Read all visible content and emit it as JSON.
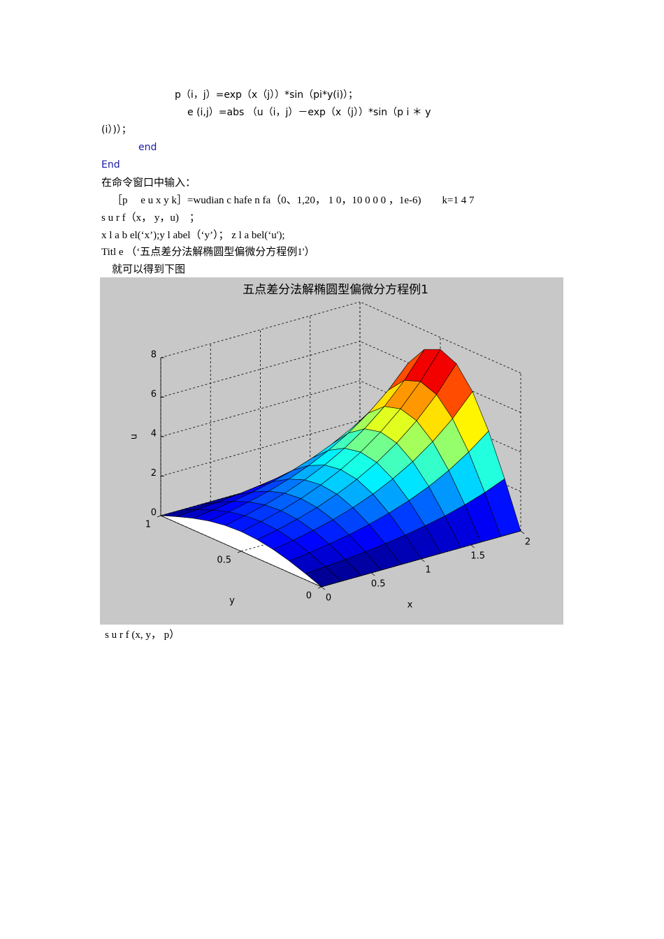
{
  "document": {
    "lines": [
      "p（i，j）=exp（x（j））*sin（pi*y(i)）；",
      "e (i,j）=abs （u（i，j）－exp（x（j））*sin（p i ＊ y",
      "(i）)）；",
      "end",
      "End",
      "在命令窗口中输入：",
      "［p　 e u x y k］=wudian c hafe n fa（0、1,20， 1 0，10 0 0 0 ，1e-6)　　k=1 4 7",
      "s u r f（x， y，u)　；",
      "x l a b el(‘x’);y l abel（‘y’）； z l a bel(‘u');",
      "Titl e （‘五点差分法解椭圆型偏微分方程例1'）",
      "就可以得到下图"
    ],
    "after": "s u r f (x, y， p）"
  },
  "chart_data": {
    "type": "surface",
    "title": "五点差分法解椭圆型偏微分方程例1",
    "xlabel": "x",
    "ylabel": "y",
    "zlabel": "u",
    "x": [
      0,
      0.2,
      0.4,
      0.6,
      0.8,
      1,
      1.2,
      1.4,
      1.6,
      1.8,
      2
    ],
    "y": [
      0,
      0.1,
      0.2,
      0.3,
      0.4,
      0.5,
      0.6,
      0.7,
      0.8,
      0.9,
      1
    ],
    "z": [
      [
        0,
        0,
        0,
        0,
        0,
        0,
        0,
        0,
        0,
        0,
        0
      ],
      [
        0.31,
        0.38,
        0.46,
        0.56,
        0.69,
        0.84,
        1.03,
        1.25,
        1.53,
        1.87,
        2.28
      ],
      [
        0.59,
        0.72,
        0.88,
        1.07,
        1.31,
        1.6,
        1.95,
        2.38,
        2.91,
        3.56,
        4.34
      ],
      [
        0.81,
        0.99,
        1.21,
        1.47,
        1.8,
        2.2,
        2.69,
        3.28,
        4.01,
        4.89,
        5.98
      ],
      [
        0.95,
        1.16,
        1.42,
        1.73,
        2.12,
        2.59,
        3.16,
        3.86,
        4.71,
        5.75,
        7.03
      ],
      [
        1,
        1.22,
        1.49,
        1.82,
        2.23,
        2.72,
        3.32,
        4.06,
        4.95,
        6.05,
        7.39
      ],
      [
        0.95,
        1.16,
        1.42,
        1.73,
        2.12,
        2.59,
        3.16,
        3.86,
        4.71,
        5.75,
        7.03
      ],
      [
        0.81,
        0.99,
        1.21,
        1.47,
        1.8,
        2.2,
        2.69,
        3.28,
        4.01,
        4.89,
        5.98
      ],
      [
        0.59,
        0.72,
        0.88,
        1.07,
        1.31,
        1.6,
        1.95,
        2.38,
        2.91,
        3.56,
        4.34
      ],
      [
        0.31,
        0.38,
        0.46,
        0.56,
        0.69,
        0.84,
        1.03,
        1.25,
        1.53,
        1.87,
        2.28
      ],
      [
        0,
        0,
        0,
        0,
        0,
        0,
        0,
        0,
        0,
        0,
        0
      ]
    ],
    "xlim": [
      0,
      2
    ],
    "ylim": [
      0,
      1
    ],
    "zlim": [
      0,
      8
    ],
    "xticks": [
      0,
      0.5,
      1,
      1.5,
      2
    ],
    "yticks": [
      0,
      0.5,
      1
    ],
    "zticks": [
      0,
      2,
      4,
      6,
      8
    ],
    "colormap": "jet",
    "grid": true
  }
}
